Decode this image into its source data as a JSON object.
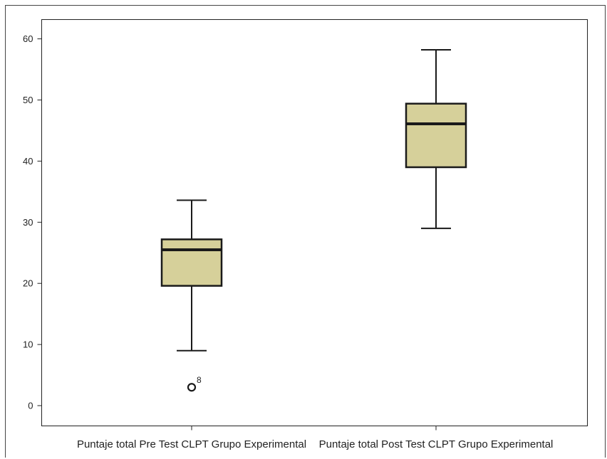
{
  "chart_data": {
    "type": "boxplot",
    "title": "",
    "xlabel": "",
    "ylabel": "",
    "ylim": [
      0,
      63.5
    ],
    "yticks": [
      0,
      10,
      20,
      30,
      40,
      50,
      60
    ],
    "grid": false,
    "box_fill": "#d6d09a",
    "stroke_color": "#1a1a1a",
    "categories": [
      "Puntaje total Pre Test CLPT Grupo Experimental",
      "Puntaje total Post Test CLPT Grupo Experimental"
    ],
    "boxes": [
      {
        "whisker_low": 9,
        "q1": 19.6,
        "median": 25.5,
        "q3": 27.2,
        "whisker_high": 33.6,
        "outliers": [
          {
            "value": 3,
            "label": "8"
          }
        ]
      },
      {
        "whisker_low": 29,
        "q1": 39,
        "median": 46.1,
        "q3": 49.4,
        "whisker_high": 58.2,
        "outliers": []
      }
    ]
  }
}
